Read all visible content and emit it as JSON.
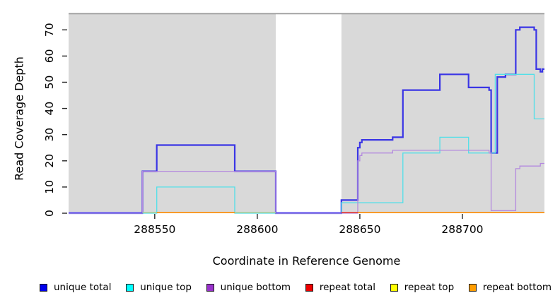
{
  "chart_data": {
    "type": "line",
    "subtype": "step",
    "title": "",
    "xlabel": "Coordinate in Reference Genome",
    "ylabel": "Read Coverage Depth",
    "xlim": [
      288508,
      288740
    ],
    "ylim": [
      0,
      76
    ],
    "x_ticks": [
      "288550",
      "288600",
      "288650",
      "288700"
    ],
    "x_tick_values": [
      288550,
      288600,
      288650,
      288700
    ],
    "y_ticks": [
      "0",
      "10",
      "20",
      "30",
      "40",
      "50",
      "60",
      "70"
    ],
    "y_tick_values": [
      0,
      10,
      20,
      30,
      40,
      50,
      60,
      70
    ],
    "grid": false,
    "legend_position": "bottom",
    "panel_background": "#d9d9d9",
    "top_border_color": "#9a9a9a",
    "shaded_regions": [
      {
        "from": 288508,
        "to": 288609
      },
      {
        "from": 288641,
        "to": 288740
      }
    ],
    "gap_region": {
      "from": 288609,
      "to": 288641,
      "color": "#ffffff"
    },
    "series": [
      {
        "name": "unique total",
        "color": "#3a35e5",
        "width": 2.2,
        "steps": [
          [
            288508,
            0
          ],
          [
            288544,
            16
          ],
          [
            288551,
            26
          ],
          [
            288589,
            16
          ],
          [
            288609,
            0
          ],
          [
            288641,
            5
          ],
          [
            288649,
            25
          ],
          [
            288650,
            27
          ],
          [
            288651,
            28
          ],
          [
            288666,
            29
          ],
          [
            288671,
            47
          ],
          [
            288689,
            53
          ],
          [
            288703,
            48
          ],
          [
            288713,
            47
          ],
          [
            288714,
            23
          ],
          [
            288717,
            52
          ],
          [
            288721,
            53
          ],
          [
            288726,
            70
          ],
          [
            288728,
            71
          ],
          [
            288735,
            70
          ],
          [
            288736,
            55
          ],
          [
            288738,
            54
          ],
          [
            288739,
            55
          ]
        ]
      },
      {
        "name": "unique top",
        "color": "#52dfe8",
        "width": 1.3,
        "steps": [
          [
            288508,
            0
          ],
          [
            288551,
            10
          ],
          [
            288589,
            0
          ],
          [
            288641,
            4
          ],
          [
            288671,
            23
          ],
          [
            288689,
            29
          ],
          [
            288703,
            23
          ],
          [
            288716,
            53
          ],
          [
            288735,
            36
          ]
        ]
      },
      {
        "name": "unique bottom",
        "color": "#b48ade",
        "width": 1.3,
        "steps": [
          [
            288508,
            0
          ],
          [
            288544,
            16
          ],
          [
            288609,
            0
          ],
          [
            288649,
            20
          ],
          [
            288650,
            22
          ],
          [
            288651,
            23
          ],
          [
            288666,
            24
          ],
          [
            288713,
            23
          ],
          [
            288714,
            1
          ],
          [
            288726,
            17
          ],
          [
            288728,
            18
          ],
          [
            288738,
            19
          ]
        ]
      }
    ],
    "baseline_segments": [
      {
        "from": 288508,
        "to": 288544,
        "color": "#6a5aee"
      },
      {
        "from": 288544,
        "to": 288551,
        "color": "#9ccf9c"
      },
      {
        "from": 288551,
        "to": 288589,
        "color": "#ff8c00"
      },
      {
        "from": 288589,
        "to": 288609,
        "color": "#9ccf9c"
      },
      {
        "from": 288609,
        "to": 288641,
        "color": "#6a5aee"
      },
      {
        "from": 288641,
        "to": 288649,
        "color": "#e03030"
      },
      {
        "from": 288649,
        "to": 288740,
        "color": "#ff8c00"
      }
    ],
    "legend": [
      {
        "label": "unique total",
        "color": "#0000ee"
      },
      {
        "label": "unique top",
        "color": "#00ffff"
      },
      {
        "label": "unique bottom",
        "color": "#9932cc"
      },
      {
        "label": "repeat total",
        "color": "#ee0000"
      },
      {
        "label": "repeat top",
        "color": "#ffff00"
      },
      {
        "label": "repeat bottom",
        "color": "#ff9d00"
      }
    ]
  }
}
